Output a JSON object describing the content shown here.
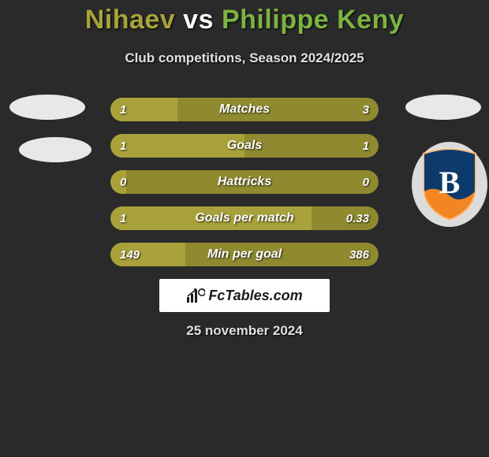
{
  "title": {
    "player1": "Nihaev",
    "vs": "vs",
    "player2": "Philippe Keny"
  },
  "subtitle": "Club competitions, Season 2024/2025",
  "date": "25 november 2024",
  "colors": {
    "player1": "#a9a23a",
    "player2": "#7cb342",
    "bar_track": "#8f8a30",
    "bar_fill": "#a9a23a",
    "background": "#2a2a2a"
  },
  "club_badge": {
    "name": "Istanbul Basaksehir",
    "primary": "#0e3a6b",
    "accent": "#ff8a1f",
    "letter": "B",
    "letter_color": "#ffffff",
    "trim": "#ffffff"
  },
  "bars": [
    {
      "label": "Matches",
      "left": "1",
      "right": "3",
      "left_pct": 25
    },
    {
      "label": "Goals",
      "left": "1",
      "right": "1",
      "left_pct": 50
    },
    {
      "label": "Hattricks",
      "left": "0",
      "right": "0",
      "left_pct": 6
    },
    {
      "label": "Goals per match",
      "left": "1",
      "right": "0.33",
      "left_pct": 75
    },
    {
      "label": "Min per goal",
      "left": "149",
      "right": "386",
      "left_pct": 28
    }
  ],
  "watermark": {
    "text": "FcTables.com"
  }
}
